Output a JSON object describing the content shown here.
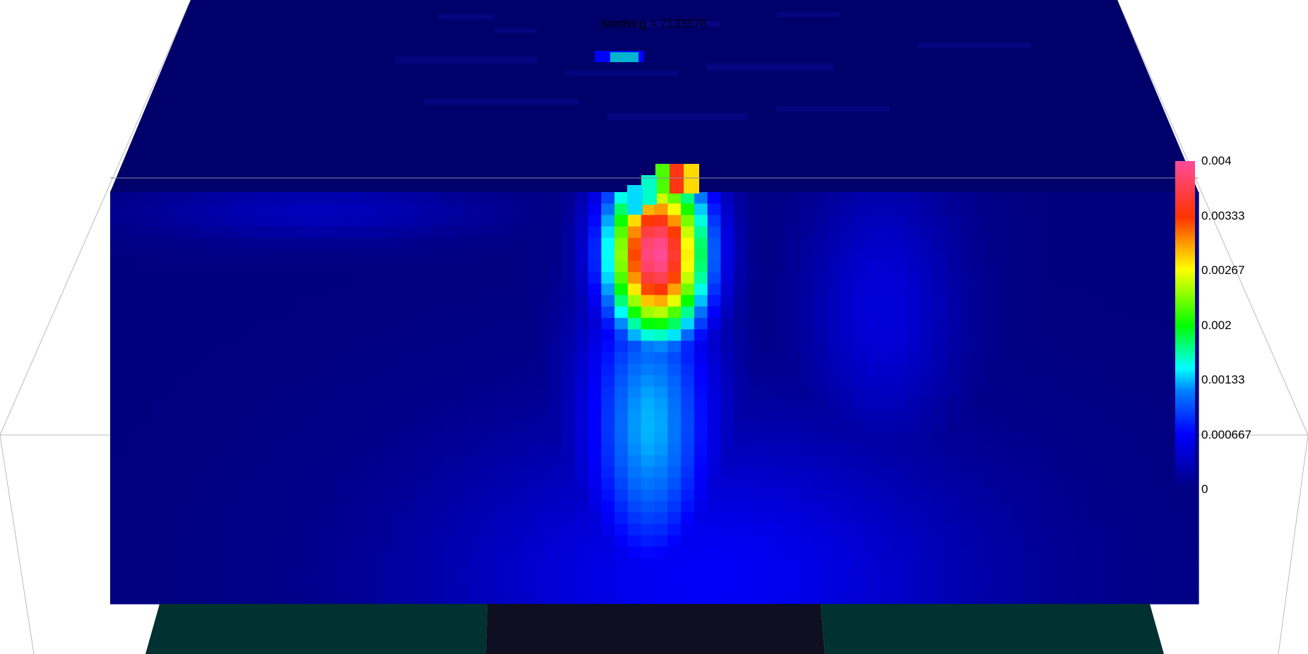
{
  "chart_data": {
    "type": "heatmap",
    "title": "Northing = 7133576",
    "colorbar": {
      "min": 0,
      "max": 0.004,
      "ticks": [
        "0.004",
        "0.00333",
        "0.00267",
        "0.002",
        "0.00133",
        "0.000667",
        "0"
      ],
      "colormap": [
        {
          "v": 0.0,
          "color": "#00007f"
        },
        {
          "v": 0.17,
          "color": "#0000ff"
        },
        {
          "v": 0.3,
          "color": "#0080ff"
        },
        {
          "v": 0.37,
          "color": "#00ffff"
        },
        {
          "v": 0.5,
          "color": "#00ff00"
        },
        {
          "v": 0.67,
          "color": "#ffff00"
        },
        {
          "v": 0.83,
          "color": "#ff3300"
        },
        {
          "v": 1.0,
          "color": "#ff4b9b"
        }
      ]
    },
    "anomaly": {
      "peak_value": 0.004,
      "background_value": 0.0002
    }
  },
  "colors": {
    "background": "#ffffff",
    "top_surface": "#00006a",
    "ground_green": "#013130",
    "ground_dark": "#0f0f22",
    "bounding_box": "#bbbbbb"
  }
}
